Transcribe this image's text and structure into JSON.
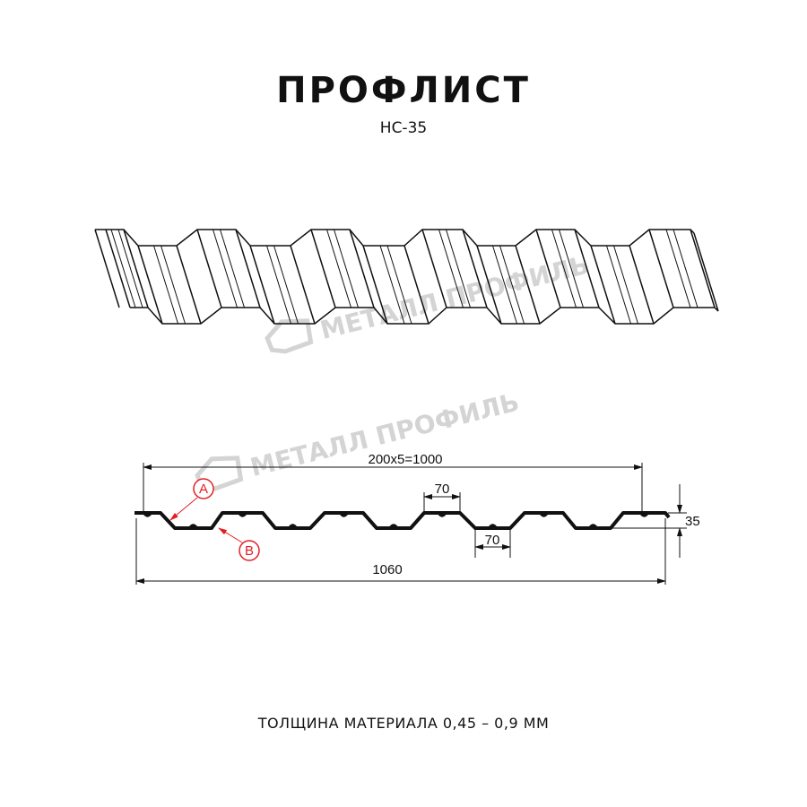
{
  "title": "ПРОФЛИСТ",
  "subtitle": "НС-35",
  "watermark": "МЕТАЛЛ ПРОФИЛЬ",
  "dimensions": {
    "pitch_total": "200x5=1000",
    "top_flat": "70",
    "bottom_flat": "70",
    "height": "35",
    "total_width": "1060"
  },
  "callouts": {
    "a": "A",
    "b": "B"
  },
  "caption": "ТОЛЩИНА МАТЕРИАЛА 0,45 – 0,9 ММ",
  "colors": {
    "line": "#111111",
    "callout": "#e31e24",
    "watermark": "#d4d4d4"
  }
}
